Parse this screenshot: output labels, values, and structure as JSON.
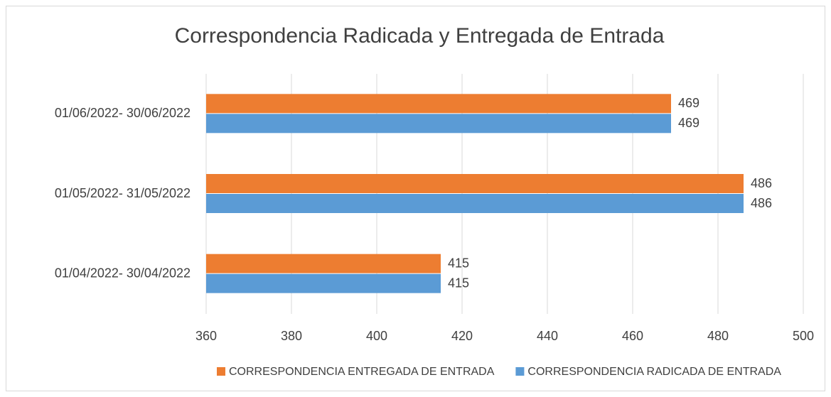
{
  "chart_data": {
    "type": "bar",
    "orientation": "horizontal",
    "title": "Correspondencia Radicada y Entregada de Entrada",
    "categories": [
      "01/04/2022- 30/04/2022",
      "01/05/2022- 31/05/2022",
      "01/06/2022- 30/06/2022"
    ],
    "series": [
      {
        "name": "CORRESPONDENCIA ENTREGADA DE ENTRADA",
        "color": "#ED7D31",
        "values": [
          415,
          486,
          469
        ]
      },
      {
        "name": "CORRESPONDENCIA RADICADA DE ENTRADA",
        "color": "#5B9BD5",
        "values": [
          415,
          486,
          469
        ]
      }
    ],
    "xlim": [
      360,
      500
    ],
    "xticks": [
      360,
      380,
      400,
      420,
      440,
      460,
      480,
      500
    ],
    "grid": true,
    "legend": "bottom"
  }
}
